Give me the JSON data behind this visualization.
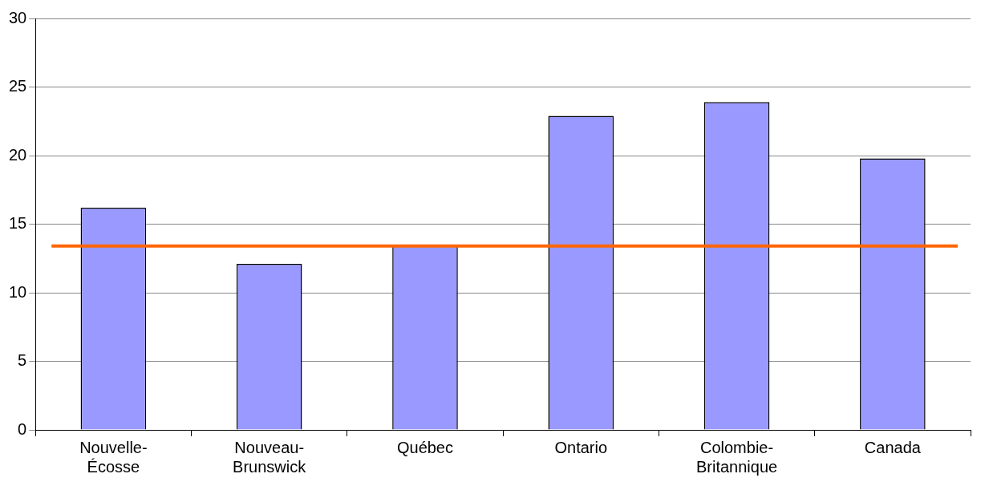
{
  "chart_data": {
    "type": "bar",
    "categories": [
      "Nouvelle-Écosse",
      "Nouveau-Brunswick",
      "Québec",
      "Ontario",
      "Colombie-Britannique",
      "Canada"
    ],
    "values": [
      16.2,
      12.1,
      13.4,
      22.9,
      23.9,
      19.8
    ],
    "color": "#9999ff",
    "ylim": [
      0,
      30
    ],
    "yticks": [
      0,
      5,
      10,
      15,
      20,
      25,
      30
    ],
    "grid": "y",
    "ref_lines": [
      {
        "axis": "y",
        "value": 13.4,
        "color": "#ff6600"
      }
    ]
  }
}
